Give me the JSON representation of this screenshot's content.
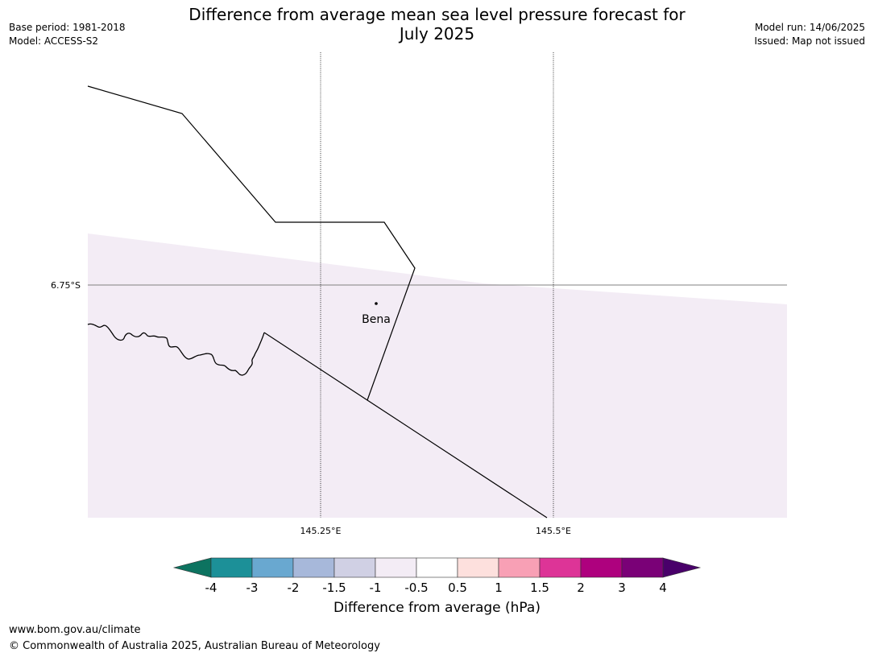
{
  "header": {
    "title_line1": "Difference from average mean sea level pressure forecast for",
    "title_line2": "July 2025",
    "base_period": "Base period: 1981-2018",
    "model": "Model: ACCESS-S2",
    "model_run": "Model run: 14/06/2025",
    "issued": "Issued: Map not issued"
  },
  "map": {
    "place_label": "Bena",
    "lat_labels": [
      "6.75°S"
    ],
    "lon_labels": [
      "145.25°E",
      "145.5°E"
    ],
    "fill_color": "#f3ecf5",
    "line_color": "#000000"
  },
  "colorbar": {
    "label": "Difference from average (hPa)",
    "ticks": [
      "-4",
      "-3",
      "-2",
      "-1.5",
      "-1",
      "-0.5",
      "0.5",
      "1",
      "1.5",
      "2",
      "3",
      "4"
    ],
    "colors": [
      "#0d7360",
      "#1c9098",
      "#69a8d0",
      "#a7b8da",
      "#d0d0e4",
      "#f3ecf5",
      "#ffffff",
      "#fde0dd",
      "#f8a0b5",
      "#dd3497",
      "#ae017e",
      "#7a0177",
      "#49006a"
    ]
  },
  "footer": {
    "url": "www.bom.gov.au/climate",
    "copyright": "© Commonwealth of Australia 2025, Australian Bureau of Meteorology"
  }
}
